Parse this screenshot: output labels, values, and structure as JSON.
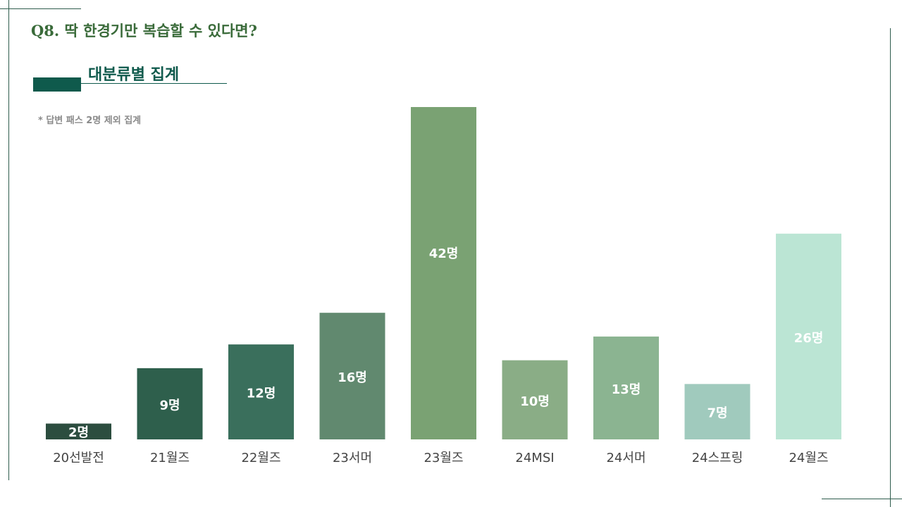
{
  "header": {
    "question": "Q8. 딱 한경기만 복습할 수 있다면?",
    "subtitle": "대분류별 집계",
    "note": "* 답변 패스 2명 제외 집계"
  },
  "chart_data": {
    "type": "bar",
    "categories": [
      "20선발전",
      "21월즈",
      "22월즈",
      "23서머",
      "23월즈",
      "24MSI",
      "24서머",
      "24스프링",
      "24월즈"
    ],
    "values": [
      2,
      9,
      12,
      16,
      42,
      10,
      13,
      7,
      26
    ],
    "value_labels": [
      "2명",
      "9명",
      "12명",
      "16명",
      "42명",
      "10명",
      "13명",
      "7명",
      "26명"
    ],
    "colors": [
      "#2c4d3f",
      "#2e5f4c",
      "#3a6f5c",
      "#61896f",
      "#7aa273",
      "#8aad86",
      "#8bb491",
      "#a0cabd",
      "#bbe5d4"
    ],
    "label_colors": [
      "#ffffff",
      "#ffffff",
      "#ffffff",
      "#ffffff",
      "#ffffff",
      "#ffffff",
      "#ffffff",
      "#ffffff",
      "#ffffff"
    ],
    "ylim": [
      0,
      42
    ],
    "grid": false,
    "xlabel": "",
    "ylabel": ""
  }
}
